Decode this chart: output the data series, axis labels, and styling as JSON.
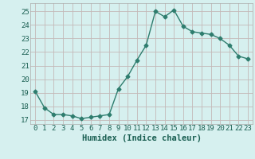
{
  "x": [
    0,
    1,
    2,
    3,
    4,
    5,
    6,
    7,
    8,
    9,
    10,
    11,
    12,
    13,
    14,
    15,
    16,
    17,
    18,
    19,
    20,
    21,
    22,
    23
  ],
  "y": [
    19.1,
    17.9,
    17.4,
    17.4,
    17.3,
    17.1,
    17.2,
    17.3,
    17.4,
    19.3,
    20.2,
    21.4,
    22.5,
    25.0,
    24.6,
    25.1,
    23.9,
    23.5,
    23.4,
    23.3,
    23.0,
    22.5,
    21.7,
    21.5
  ],
  "line_color": "#2e7d6e",
  "marker": "D",
  "marker_size": 2.5,
  "bg_color": "#d6f0ef",
  "grid_color": "#c4b8b8",
  "xlabel": "Humidex (Indice chaleur)",
  "ylabel": "",
  "ylim": [
    16.7,
    25.6
  ],
  "yticks": [
    17,
    18,
    19,
    20,
    21,
    22,
    23,
    24,
    25
  ],
  "xticks": [
    0,
    1,
    2,
    3,
    4,
    5,
    6,
    7,
    8,
    9,
    10,
    11,
    12,
    13,
    14,
    15,
    16,
    17,
    18,
    19,
    20,
    21,
    22,
    23
  ],
  "xlim": [
    -0.5,
    23.5
  ],
  "xlabel_fontsize": 7.5,
  "tick_fontsize": 6.5,
  "line_width": 1.0
}
